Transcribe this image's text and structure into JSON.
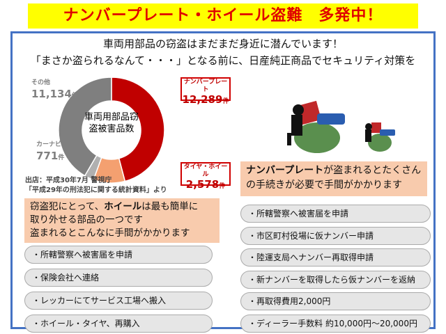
{
  "title": "ナンバープレート・ホイール盗難　多発中！",
  "headline1": "車両用部品の窃盗はまだまだ身近に潜んでいます！",
  "headline2": "「まさか盗られるなんて・・・」となる前に、日産純正商品でセキュリティ対策を",
  "chart_data": {
    "type": "pie",
    "title": "車両用部品窃盗被害品数",
    "unit": "件",
    "categories": [
      "ナンバープレート",
      "タイヤ・ホイール",
      "カーナビ",
      "その他"
    ],
    "values": [
      12289,
      2578,
      771,
      11134
    ],
    "labels": [
      "12,289",
      "2,578",
      "771",
      "11,134"
    ],
    "colors": [
      "#c00000",
      "#f4a070",
      "#b0b0b0",
      "#7f7f7f"
    ]
  },
  "source1": "出店：平成30年7月 警視庁",
  "source2": "「平成29年の刑法犯に関する統計資料」より",
  "left_note": {
    "pre": "窃盗犯にとって、",
    "bold": "ホイール",
    "post": "は最も簡単に",
    "line2": "取り外せる部品の一つです",
    "line3": "盗まれるとこんなに手間がかかります"
  },
  "left_items": [
    "・所轄警察へ被害届を申請",
    "・保険会社へ連絡",
    "・レッカーにてサービス工場へ搬入",
    "・ホイール・タイヤ、再購入"
  ],
  "right_note": {
    "bold": "ナンバープレート",
    "post": "が盗まれるとたくさん",
    "line2": "の手続きが必要で手間がかかります"
  },
  "right_items": [
    "・所轄警察へ被害届を申請",
    "・市区町村役場に仮ナンバー申請",
    "・陸運支局へナンバー再取得申請",
    "・新ナンバーを取得したら仮ナンバーを返納",
    "・再取得費用2,000円",
    "・ディーラー手数料 約10,000円～20,000円"
  ]
}
